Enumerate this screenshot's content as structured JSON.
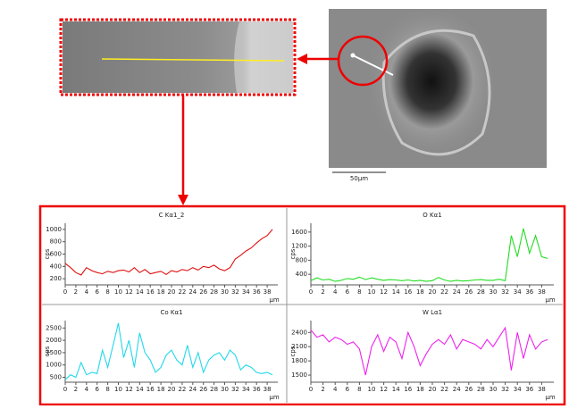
{
  "images": {
    "scale_label": "50μm"
  },
  "chart_data": [
    {
      "type": "line",
      "title": "C Kα1_2",
      "ylabel": "cps",
      "xlabel": "μm",
      "x": [
        0,
        1,
        2,
        3,
        4,
        5,
        6,
        7,
        8,
        9,
        10,
        11,
        12,
        13,
        14,
        15,
        16,
        17,
        18,
        19,
        20,
        21,
        22,
        23,
        24,
        25,
        26,
        27,
        28,
        29,
        30,
        31,
        32,
        33,
        34,
        35,
        36,
        37,
        38,
        39
      ],
      "series": [
        {
          "name": "C Kα1_2",
          "color": "#e01010",
          "values": [
            450,
            380,
            300,
            260,
            380,
            330,
            300,
            280,
            320,
            300,
            330,
            340,
            310,
            380,
            300,
            350,
            280,
            300,
            320,
            270,
            330,
            310,
            350,
            330,
            380,
            340,
            400,
            380,
            420,
            360,
            330,
            380,
            520,
            580,
            650,
            700,
            780,
            850,
            900,
            1000
          ]
        }
      ],
      "xlim": [
        0,
        40
      ],
      "xticks": [
        0,
        2,
        4,
        6,
        8,
        10,
        12,
        14,
        16,
        18,
        20,
        22,
        24,
        26,
        28,
        30,
        32,
        34,
        36,
        38
      ],
      "ylim": [
        100,
        1100
      ],
      "yticks": [
        200,
        400,
        600,
        800,
        1000
      ]
    },
    {
      "type": "line",
      "title": "O Kα1",
      "ylabel": "cps",
      "xlabel": "μm",
      "x": [
        0,
        1,
        2,
        3,
        4,
        5,
        6,
        7,
        8,
        9,
        10,
        11,
        12,
        13,
        14,
        15,
        16,
        17,
        18,
        19,
        20,
        21,
        22,
        23,
        24,
        25,
        26,
        27,
        28,
        29,
        30,
        31,
        32,
        33,
        34,
        35,
        36,
        37,
        38,
        39
      ],
      "series": [
        {
          "name": "O Kα1",
          "color": "#22dd22",
          "values": [
            220,
            300,
            240,
            260,
            200,
            230,
            280,
            260,
            320,
            250,
            300,
            260,
            230,
            250,
            240,
            220,
            240,
            210,
            230,
            200,
            220,
            310,
            240,
            200,
            230,
            210,
            220,
            240,
            250,
            230,
            230,
            260,
            220,
            1500,
            900,
            1700,
            1000,
            1500,
            900,
            850
          ]
        }
      ],
      "xlim": [
        0,
        40
      ],
      "xticks": [
        0,
        2,
        4,
        6,
        8,
        10,
        12,
        14,
        16,
        18,
        20,
        22,
        24,
        26,
        28,
        30,
        32,
        34,
        36,
        38
      ],
      "ylim": [
        100,
        1850
      ],
      "yticks": [
        400,
        800,
        1200,
        1600
      ]
    },
    {
      "type": "line",
      "title": "Co Kα1",
      "ylabel": "cps",
      "xlabel": "μm",
      "x": [
        0,
        1,
        2,
        3,
        4,
        5,
        6,
        7,
        8,
        9,
        10,
        11,
        12,
        13,
        14,
        15,
        16,
        17,
        18,
        19,
        20,
        21,
        22,
        23,
        24,
        25,
        26,
        27,
        28,
        29,
        30,
        31,
        32,
        33,
        34,
        35,
        36,
        37,
        38,
        39
      ],
      "series": [
        {
          "name": "Co Kα1",
          "color": "#22d8ea",
          "values": [
            400,
            600,
            500,
            1100,
            600,
            700,
            650,
            1600,
            900,
            1800,
            2700,
            1300,
            2000,
            900,
            2300,
            1500,
            1200,
            700,
            900,
            1400,
            1600,
            1200,
            1000,
            1800,
            900,
            1500,
            700,
            1200,
            1400,
            1500,
            1200,
            1600,
            1400,
            800,
            1000,
            900,
            700,
            650,
            700,
            600
          ]
        }
      ],
      "xlim": [
        0,
        40
      ],
      "xticks": [
        0,
        2,
        4,
        6,
        8,
        10,
        12,
        14,
        16,
        18,
        20,
        22,
        24,
        26,
        28,
        30,
        32,
        34,
        36,
        38
      ],
      "ylim": [
        300,
        2800
      ],
      "yticks": [
        500,
        1000,
        1500,
        2000,
        2500
      ]
    },
    {
      "type": "line",
      "title": "W Lα1",
      "ylabel": "cps",
      "xlabel": "μm",
      "x": [
        0,
        1,
        2,
        3,
        4,
        5,
        6,
        7,
        8,
        9,
        10,
        11,
        12,
        13,
        14,
        15,
        16,
        17,
        18,
        19,
        20,
        21,
        22,
        23,
        24,
        25,
        26,
        27,
        28,
        29,
        30,
        31,
        32,
        33,
        34,
        35,
        36,
        37,
        38,
        39
      ],
      "series": [
        {
          "name": "W Lα1",
          "color": "#ee22ee",
          "values": [
            2450,
            2300,
            2350,
            2200,
            2300,
            2250,
            2150,
            2200,
            2050,
            1500,
            2100,
            2350,
            2000,
            2300,
            2200,
            1850,
            2400,
            2100,
            1700,
            1950,
            2150,
            2250,
            2150,
            2350,
            2050,
            2250,
            2200,
            2150,
            2050,
            2250,
            2100,
            2300,
            2500,
            1600,
            2400,
            1850,
            2350,
            2050,
            2200,
            2250
          ]
        }
      ],
      "xlim": [
        0,
        40
      ],
      "xticks": [
        0,
        2,
        4,
        6,
        8,
        10,
        12,
        14,
        16,
        18,
        20,
        22,
        24,
        26,
        28,
        30,
        32,
        34,
        36,
        38
      ],
      "ylim": [
        1350,
        2650
      ],
      "yticks": [
        1500,
        1800,
        2100,
        2400
      ]
    }
  ]
}
